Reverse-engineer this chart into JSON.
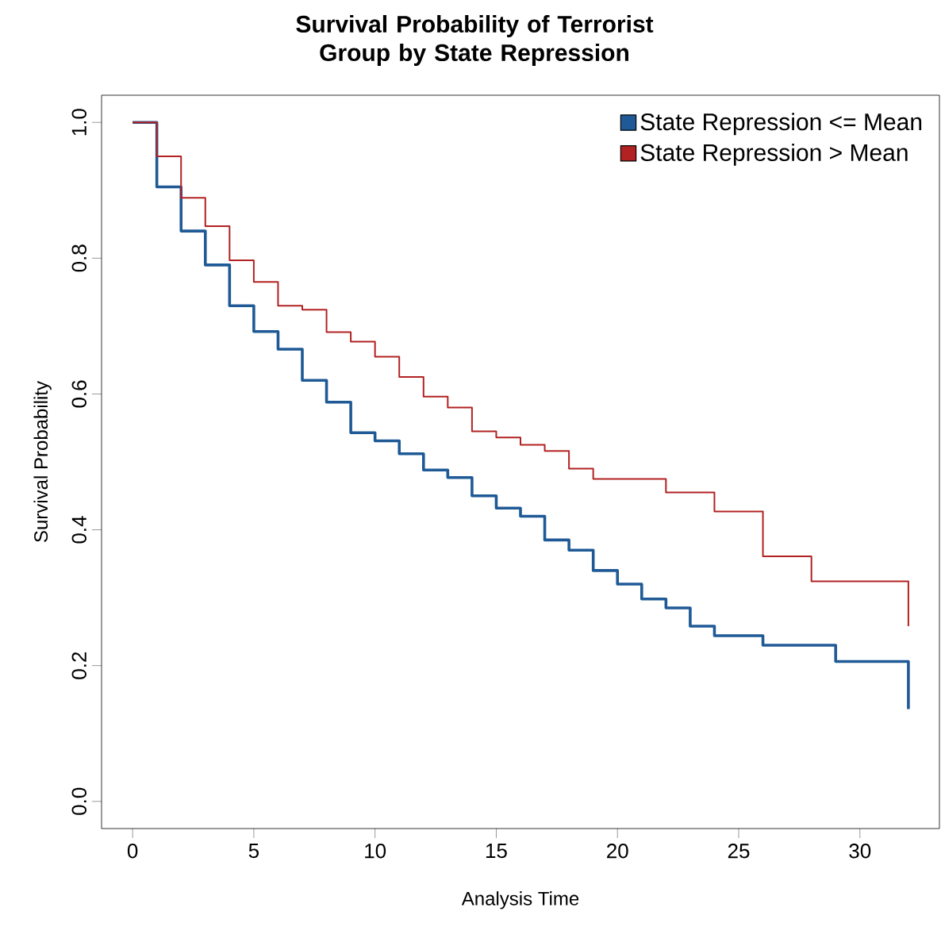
{
  "chart_data": {
    "type": "step",
    "title": "Survival Probability of Terrorist Group by State Repression",
    "xlabel": "Analysis Time",
    "ylabel": "Survival Probability",
    "xlim": [
      -1.28,
      33.28
    ],
    "ylim": [
      -0.04,
      1.04
    ],
    "xticks": [
      0,
      5,
      10,
      15,
      20,
      25,
      30
    ],
    "yticks": [
      {
        "value": 0,
        "label": "0.0"
      },
      0.2,
      0.4,
      0.6,
      0.8,
      {
        "value": 1,
        "label": "1.0"
      }
    ],
    "legend": "top right",
    "series": [
      {
        "name": "State Repression <= Mean",
        "color": "#1f5a96",
        "x": [
          0,
          1,
          2,
          3,
          4,
          5,
          6,
          7,
          8,
          9,
          10,
          11,
          12,
          13,
          14,
          15,
          16,
          17,
          18,
          19,
          20,
          21,
          22,
          23,
          24,
          26,
          29,
          32
        ],
        "values": [
          1.0,
          0.905,
          0.84,
          0.79,
          0.73,
          0.692,
          0.666,
          0.62,
          0.588,
          0.543,
          0.531,
          0.512,
          0.488,
          0.477,
          0.45,
          0.432,
          0.42,
          0.385,
          0.37,
          0.34,
          0.32,
          0.298,
          0.285,
          0.258,
          0.244,
          0.23,
          0.206,
          0.136
        ]
      },
      {
        "name": "State Repression > Mean",
        "color": "#b22222",
        "x": [
          0,
          1,
          2,
          3,
          4,
          5,
          6,
          7,
          8,
          9,
          10,
          11,
          12,
          13,
          14,
          15,
          16,
          17,
          18,
          19,
          22,
          24,
          26,
          28,
          32
        ],
        "values": [
          1.0,
          0.95,
          0.889,
          0.847,
          0.797,
          0.765,
          0.73,
          0.724,
          0.691,
          0.677,
          0.655,
          0.625,
          0.596,
          0.58,
          0.545,
          0.536,
          0.525,
          0.516,
          0.49,
          0.475,
          0.455,
          0.427,
          0.361,
          0.324,
          0.258
        ]
      }
    ]
  }
}
